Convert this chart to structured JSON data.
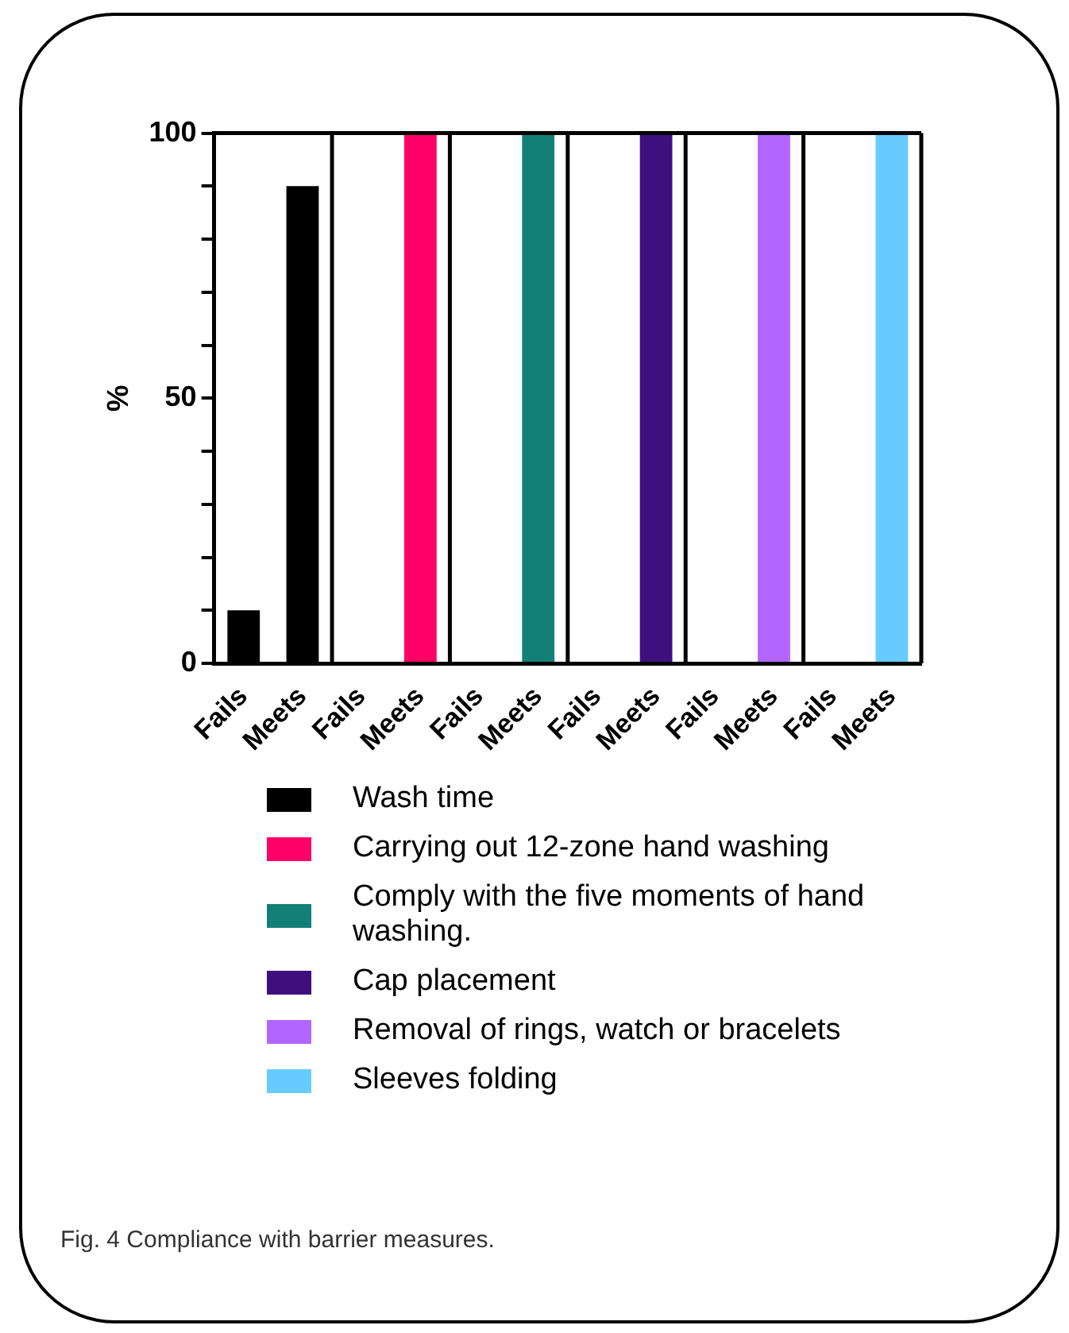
{
  "chart_data": {
    "type": "bar",
    "stacked": true,
    "ylabel": "%",
    "legend": "bottom",
    "categories": [
      "Fails",
      "Meets",
      "Fails",
      "Meets",
      "Fails",
      "Meets",
      "Fails",
      "Meets",
      "Fails",
      "Meets",
      "Fails",
      "Meets"
    ],
    "series": [
      {
        "name": "Wash time",
        "color": "#000000",
        "values": [
          10,
          90,
          null,
          null,
          null,
          null,
          null,
          null,
          null,
          null,
          null,
          null
        ]
      },
      {
        "name": "Carrying out 12-zone hand washing",
        "color": "#ff0066",
        "values": [
          null,
          null,
          0,
          100,
          null,
          null,
          null,
          null,
          null,
          null,
          null,
          null
        ]
      },
      {
        "name": "Comply with the five moments of hand washing.",
        "color": "#138078",
        "values": [
          null,
          null,
          null,
          null,
          0,
          100,
          null,
          null,
          null,
          null,
          null,
          null
        ]
      },
      {
        "name": "Cap placement",
        "color": "#3f0f7f",
        "values": [
          null,
          null,
          null,
          null,
          null,
          null,
          0,
          100,
          null,
          null,
          null,
          null
        ]
      },
      {
        "name": "Removal of rings, watch or bracelets",
        "color": "#b366ff",
        "values": [
          null,
          null,
          null,
          null,
          null,
          null,
          null,
          null,
          0,
          100,
          null,
          null
        ]
      },
      {
        "name": "Sleeves folding",
        "color": "#66ccff",
        "values": [
          null,
          null,
          null,
          null,
          null,
          null,
          null,
          null,
          null,
          null,
          0,
          100
        ]
      }
    ],
    "ylim": [
      0,
      100
    ],
    "yticks": [
      0,
      {
        "value": 10,
        "label": null
      },
      {
        "value": 20,
        "label": null
      },
      {
        "value": 30,
        "label": null
      },
      {
        "value": 40,
        "label": null
      },
      50,
      {
        "value": 60,
        "label": null
      },
      {
        "value": 70,
        "label": null
      },
      {
        "value": 80,
        "label": null
      },
      {
        "value": 90,
        "label": null
      },
      100
    ],
    "grid": false,
    "annotations": [
      "Fig. 4 Compliance with barrier measures."
    ]
  }
}
